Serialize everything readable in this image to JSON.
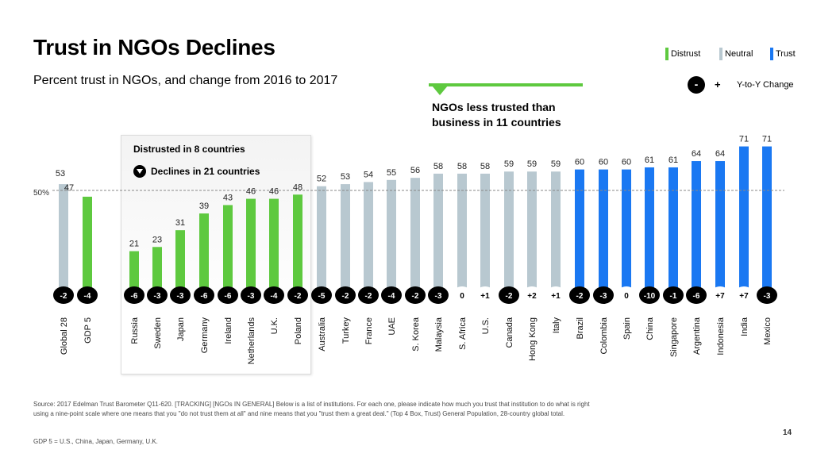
{
  "header": {
    "title": "Trust in NGOs Declines",
    "subtitle": "Percent trust in NGOs, and change from 2016 to 2017"
  },
  "legend": {
    "items": [
      {
        "label": "Distrust",
        "color": "#5ec93f"
      },
      {
        "label": "Neutral",
        "color": "#b8c8d0"
      },
      {
        "label": "Trust",
        "color": "#1a78f2"
      }
    ],
    "yoy_minus": "-",
    "yoy_plus": "+",
    "yoy_label": "Y-to-Y Change"
  },
  "callout": {
    "line1": "NGOs less trusted than",
    "line2": "business in 11 countries"
  },
  "panel": {
    "title": "Distrusted in 8 countries",
    "declines": "Declines in 21 countries"
  },
  "reference_label": "50%",
  "chart_data": {
    "type": "bar",
    "categories": [
      "Global 28",
      "GDP 5",
      "Russia",
      "Sweden",
      "Japan",
      "Germany",
      "Ireland",
      "Netherlands",
      "U.K.",
      "Poland",
      "Australia",
      "Turkey",
      "France",
      "UAE",
      "S. Korea",
      "Malaysia",
      "S. Africa",
      "U.S.",
      "Canada",
      "Hong Kong",
      "Italy",
      "Brazil",
      "Colombia",
      "Spain",
      "China",
      "Singapore",
      "Argentina",
      "Indonesia",
      "India",
      "Mexico"
    ],
    "values": [
      53,
      47,
      21,
      23,
      31,
      39,
      43,
      46,
      46,
      48,
      52,
      53,
      54,
      55,
      56,
      58,
      58,
      58,
      59,
      59,
      59,
      60,
      60,
      60,
      61,
      61,
      64,
      64,
      71,
      71
    ],
    "changes": [
      "-2",
      "-4",
      "-6",
      "-3",
      "-3",
      "-6",
      "-6",
      "-3",
      "-4",
      "-2",
      "-5",
      "-2",
      "-2",
      "-4",
      "-2",
      "-3",
      "0",
      "+1",
      "-2",
      "+2",
      "+1",
      "-2",
      "-3",
      "0",
      "-10",
      "-1",
      "-6",
      "+7",
      "+7",
      "-3"
    ],
    "groups": [
      "neutral",
      "distrust",
      "distrust",
      "distrust",
      "distrust",
      "distrust",
      "distrust",
      "distrust",
      "distrust",
      "distrust",
      "neutral",
      "neutral",
      "neutral",
      "neutral",
      "neutral",
      "neutral",
      "neutral",
      "neutral",
      "neutral",
      "neutral",
      "neutral",
      "trust",
      "trust",
      "trust",
      "trust",
      "trust",
      "trust",
      "trust",
      "trust",
      "trust"
    ],
    "colors": {
      "distrust": "#5ec93f",
      "neutral": "#b8c8d0",
      "trust": "#1a78f2"
    },
    "reference_line": 50,
    "ylim": [
      0,
      75
    ]
  },
  "footer": {
    "source": "Source: 2017 Edelman Trust Barometer Q11-620. [TRACKING] [NGOs IN GENERAL] Below is a list of institutions. For each one, please indicate how much you trust that institution to do what is right using a nine-point scale where one means that you \"do not trust them at all\" and nine means that you \"trust them a great deal.\" (Top 4 Box, Trust) General Population, 28-country global total.",
    "gdp_note": "GDP 5 = U.S., China, Japan, Germany, U.K.",
    "page_number": "14"
  }
}
